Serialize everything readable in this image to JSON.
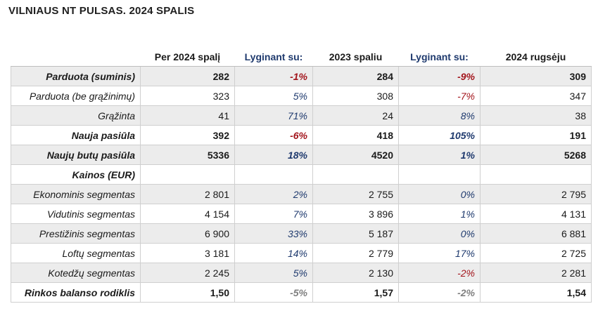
{
  "title": "VILNIAUS NT PULSAS. 2024 SPALIS",
  "headers": [
    "",
    "Per 2024 spalį",
    "Lyginant su:",
    "2023 spaliu",
    "Lyginant su:",
    "2024 rugsėju"
  ],
  "rows": [
    {
      "label": "Parduota (suminis)",
      "v1": "282",
      "p1": "-1%",
      "p1c": "neg",
      "v2": "284",
      "p2": "-9%",
      "p2c": "neg",
      "v3": "309",
      "bold": true,
      "shade": true
    },
    {
      "label": "Parduota (be grąžinimų)",
      "v1": "323",
      "p1": "5%",
      "p1c": "pos",
      "v2": "308",
      "p2": "-7%",
      "p2c": "neg",
      "v3": "347",
      "bold": false,
      "shade": false
    },
    {
      "label": "Grąžinta",
      "v1": "41",
      "p1": "71%",
      "p1c": "pos",
      "v2": "24",
      "p2": "8%",
      "p2c": "pos",
      "v3": "38",
      "bold": false,
      "shade": true
    },
    {
      "label": "Nauja pasiūla",
      "v1": "392",
      "p1": "-6%",
      "p1c": "neg",
      "v2": "418",
      "p2": "105%",
      "p2c": "pos",
      "v3": "191",
      "bold": true,
      "shade": false
    },
    {
      "label": "Naujų butų pasiūla",
      "v1": "5336",
      "p1": "18%",
      "p1c": "pos",
      "v2": "4520",
      "p2": "1%",
      "p2c": "pos",
      "v3": "5268",
      "bold": true,
      "shade": true
    },
    {
      "label": "Kainos (EUR)",
      "v1": "",
      "p1": "",
      "p1c": "",
      "v2": "",
      "p2": "",
      "p2c": "",
      "v3": "",
      "bold": true,
      "shade": false
    },
    {
      "label": "Ekonominis segmentas",
      "v1": "2 801",
      "p1": "2%",
      "p1c": "pos",
      "v2": "2 755",
      "p2": "0%",
      "p2c": "pos",
      "v3": "2 795",
      "bold": false,
      "shade": true
    },
    {
      "label": "Vidutinis segmentas",
      "v1": "4 154",
      "p1": "7%",
      "p1c": "pos",
      "v2": "3 896",
      "p2": "1%",
      "p2c": "pos",
      "v3": "4 131",
      "bold": false,
      "shade": false
    },
    {
      "label": "Prestižinis segmentas",
      "v1": "6 900",
      "p1": "33%",
      "p1c": "pos",
      "v2": "5 187",
      "p2": "0%",
      "p2c": "pos",
      "v3": "6 881",
      "bold": false,
      "shade": true
    },
    {
      "label": "Loftų segmentas",
      "v1": "3 181",
      "p1": "14%",
      "p1c": "pos",
      "v2": "2 779",
      "p2": "17%",
      "p2c": "pos",
      "v3": "2 725",
      "bold": false,
      "shade": false
    },
    {
      "label": "Kotedžų segmentas",
      "v1": "2 245",
      "p1": "5%",
      "p1c": "pos",
      "v2": "2 130",
      "p2": "-2%",
      "p2c": "neg",
      "v3": "2 281",
      "bold": false,
      "shade": true
    },
    {
      "label": "Rinkos balanso rodiklis",
      "v1": "1,50",
      "p1": "-5%",
      "p1c": "neu",
      "v2": "1,57",
      "p2": "-2%",
      "p2c": "neu",
      "v3": "1,54",
      "bold": true,
      "shade": false
    }
  ],
  "colors": {
    "positive": "#1f3a6e",
    "negative": "#a3151c",
    "neutral": "#7f7f7f",
    "shade": "#ececec"
  }
}
